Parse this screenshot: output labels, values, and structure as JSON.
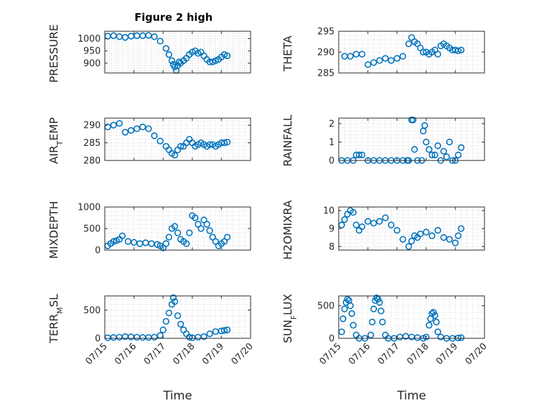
{
  "figure": {
    "title": "Figure 2 high",
    "xlabel": "Time",
    "xticks": [
      "07/15",
      "07/16",
      "07/17",
      "07/18",
      "07/19",
      "07/20"
    ],
    "marker_color": "#0072BD",
    "grid": "minor dotted"
  },
  "chart_data": [
    {
      "type": "scatter",
      "ylabel": "PRESSURE",
      "ylim": [
        860,
        1030
      ],
      "yticks": [
        "900",
        "950",
        "1000"
      ],
      "ytick_values": [
        900,
        950,
        1000
      ],
      "x": [
        0.1,
        0.3,
        0.5,
        0.7,
        0.9,
        1.1,
        1.3,
        1.5,
        1.7,
        1.9,
        2.1,
        2.2,
        2.3,
        2.35,
        2.4,
        2.45,
        2.5,
        2.55,
        2.6,
        2.7,
        2.8,
        2.9,
        3.0,
        3.1,
        3.2,
        3.3,
        3.4,
        3.5,
        3.6,
        3.7,
        3.8,
        3.9,
        4.0,
        4.1,
        4.2
      ],
      "y": [
        1010,
        1012,
        1008,
        1005,
        1010,
        1012,
        1012,
        1013,
        1008,
        990,
        960,
        935,
        910,
        895,
        885,
        870,
        890,
        905,
        900,
        910,
        920,
        935,
        945,
        950,
        940,
        945,
        930,
        915,
        905,
        905,
        910,
        915,
        925,
        935,
        930
      ]
    },
    {
      "type": "scatter",
      "ylabel": "THETA",
      "ylim": [
        285,
        295
      ],
      "yticks": [
        "285",
        "290",
        "295"
      ],
      "ytick_values": [
        285,
        290,
        295
      ],
      "x": [
        0.2,
        0.4,
        0.6,
        0.8,
        1.0,
        1.2,
        1.4,
        1.6,
        1.8,
        2.0,
        2.2,
        2.4,
        2.5,
        2.6,
        2.7,
        2.8,
        2.9,
        3.0,
        3.1,
        3.2,
        3.3,
        3.4,
        3.5,
        3.6,
        3.7,
        3.8,
        3.9,
        4.0,
        4.1,
        4.2
      ],
      "y": [
        289,
        289,
        289.5,
        289.5,
        287,
        287.5,
        288,
        288.5,
        288,
        288.5,
        289,
        292,
        293.5,
        292.5,
        292,
        291,
        290,
        290,
        289.5,
        290,
        290.5,
        289.5,
        291.5,
        292,
        291.5,
        291,
        290.5,
        290.5,
        290.3,
        290.5
      ]
    },
    {
      "type": "scatter",
      "ylabel": "AIR_TEMP",
      "ylim": [
        280,
        292
      ],
      "yticks": [
        "280",
        "285",
        "290"
      ],
      "ytick_values": [
        280,
        285,
        290
      ],
      "x": [
        0.1,
        0.3,
        0.5,
        0.7,
        0.9,
        1.1,
        1.3,
        1.5,
        1.7,
        1.9,
        2.1,
        2.2,
        2.3,
        2.4,
        2.5,
        2.6,
        2.7,
        2.8,
        2.9,
        3.0,
        3.1,
        3.2,
        3.3,
        3.4,
        3.5,
        3.6,
        3.7,
        3.8,
        3.9,
        4.0,
        4.1,
        4.2
      ],
      "y": [
        289.5,
        290,
        290.5,
        288,
        288.5,
        289,
        289.5,
        289,
        287,
        285.5,
        284,
        283,
        282,
        281.5,
        283,
        284,
        284,
        285,
        286,
        285,
        284,
        284.5,
        285,
        284.5,
        284,
        284.5,
        284.5,
        284,
        284.5,
        285,
        285,
        285.2
      ]
    },
    {
      "type": "scatter",
      "ylabel": "RAINFALL",
      "ylim": [
        0,
        2.3
      ],
      "yticks": [
        "0",
        "1",
        "2"
      ],
      "ytick_values": [
        0,
        1,
        2
      ],
      "x": [
        0.1,
        0.3,
        0.5,
        0.6,
        0.7,
        0.8,
        1.0,
        1.2,
        1.4,
        1.6,
        1.8,
        2.0,
        2.2,
        2.35,
        2.4,
        2.5,
        2.55,
        2.6,
        2.7,
        2.85,
        2.9,
        2.95,
        3.0,
        3.1,
        3.2,
        3.3,
        3.4,
        3.5,
        3.6,
        3.7,
        3.8,
        3.9,
        4.0,
        4.1,
        4.2
      ],
      "y": [
        0,
        0,
        0,
        0.3,
        0.3,
        0.3,
        0,
        0,
        0,
        0,
        0,
        0,
        0,
        0,
        0,
        2.2,
        2.2,
        0.6,
        0,
        0,
        1.6,
        1.9,
        1.0,
        0.6,
        0.3,
        0.3,
        0.8,
        0,
        0.5,
        0.2,
        1.0,
        0,
        0,
        0.3,
        0.7
      ]
    },
    {
      "type": "scatter",
      "ylabel": "MIXDEPTH",
      "ylim": [
        0,
        1000
      ],
      "yticks": [
        "0",
        "500",
        "1000"
      ],
      "ytick_values": [
        0,
        500,
        1000
      ],
      "x": [
        0.1,
        0.2,
        0.3,
        0.4,
        0.5,
        0.6,
        0.8,
        1.0,
        1.2,
        1.4,
        1.6,
        1.8,
        1.9,
        2.0,
        2.1,
        2.2,
        2.3,
        2.4,
        2.5,
        2.6,
        2.7,
        2.8,
        2.9,
        3.0,
        3.1,
        3.2,
        3.3,
        3.4,
        3.5,
        3.6,
        3.7,
        3.8,
        3.9,
        4.0,
        4.1,
        4.2
      ],
      "y": [
        100,
        150,
        200,
        220,
        250,
        330,
        200,
        180,
        150,
        170,
        150,
        130,
        100,
        50,
        150,
        300,
        500,
        550,
        400,
        250,
        200,
        150,
        400,
        800,
        750,
        600,
        500,
        700,
        600,
        450,
        300,
        200,
        100,
        150,
        200,
        300
      ]
    },
    {
      "type": "scatter",
      "ylabel": "H2OMIXRA",
      "ylim": [
        7.8,
        10.2
      ],
      "yticks": [
        "8",
        "9",
        "10"
      ],
      "ytick_values": [
        8,
        9,
        10
      ],
      "x": [
        0.1,
        0.2,
        0.3,
        0.4,
        0.5,
        0.6,
        0.7,
        0.8,
        1.0,
        1.2,
        1.4,
        1.6,
        1.8,
        2.0,
        2.2,
        2.4,
        2.5,
        2.6,
        2.7,
        2.8,
        3.0,
        3.2,
        3.4,
        3.6,
        3.8,
        4.0,
        4.1,
        4.2
      ],
      "y": [
        9.2,
        9.5,
        9.8,
        10.0,
        9.9,
        9.2,
        8.9,
        9.1,
        9.4,
        9.3,
        9.4,
        9.6,
        9.2,
        8.9,
        8.4,
        8.0,
        8.3,
        8.6,
        8.5,
        8.7,
        8.8,
        8.6,
        8.9,
        8.5,
        8.4,
        8.2,
        8.6,
        9.0
      ]
    },
    {
      "type": "scatter",
      "ylabel": "TERR_MSL",
      "ylim": [
        0,
        750
      ],
      "yticks": [
        "0",
        "500"
      ],
      "ytick_values": [
        0,
        500
      ],
      "x": [
        0.1,
        0.3,
        0.5,
        0.7,
        0.9,
        1.1,
        1.3,
        1.5,
        1.7,
        1.9,
        2.0,
        2.1,
        2.2,
        2.3,
        2.35,
        2.4,
        2.5,
        2.6,
        2.7,
        2.8,
        2.9,
        3.0,
        3.2,
        3.4,
        3.6,
        3.8,
        4.0,
        4.1,
        4.2
      ],
      "y": [
        10,
        15,
        20,
        30,
        25,
        20,
        15,
        15,
        20,
        50,
        150,
        300,
        450,
        600,
        720,
        650,
        400,
        250,
        150,
        80,
        20,
        10,
        20,
        30,
        80,
        120,
        130,
        140,
        150
      ]
    },
    {
      "type": "scatter",
      "ylabel": "SUN_FLUX",
      "ylim": [
        0,
        650
      ],
      "yticks": [
        "0",
        "500"
      ],
      "ytick_values": [
        0,
        500
      ],
      "x": [
        0.1,
        0.15,
        0.2,
        0.25,
        0.3,
        0.35,
        0.4,
        0.45,
        0.5,
        0.6,
        0.7,
        0.9,
        1.1,
        1.15,
        1.2,
        1.25,
        1.3,
        1.35,
        1.4,
        1.45,
        1.5,
        1.6,
        1.7,
        1.9,
        2.1,
        2.3,
        2.5,
        2.7,
        2.9,
        3.0,
        3.1,
        3.15,
        3.2,
        3.25,
        3.3,
        3.35,
        3.4,
        3.5,
        3.7,
        3.9,
        4.1,
        4.2
      ],
      "y": [
        100,
        300,
        450,
        550,
        600,
        580,
        500,
        380,
        200,
        50,
        0,
        0,
        50,
        250,
        450,
        580,
        620,
        600,
        550,
        420,
        250,
        50,
        0,
        0,
        20,
        30,
        20,
        10,
        0,
        20,
        200,
        300,
        380,
        400,
        350,
        250,
        100,
        20,
        0,
        0,
        5,
        10
      ]
    }
  ]
}
